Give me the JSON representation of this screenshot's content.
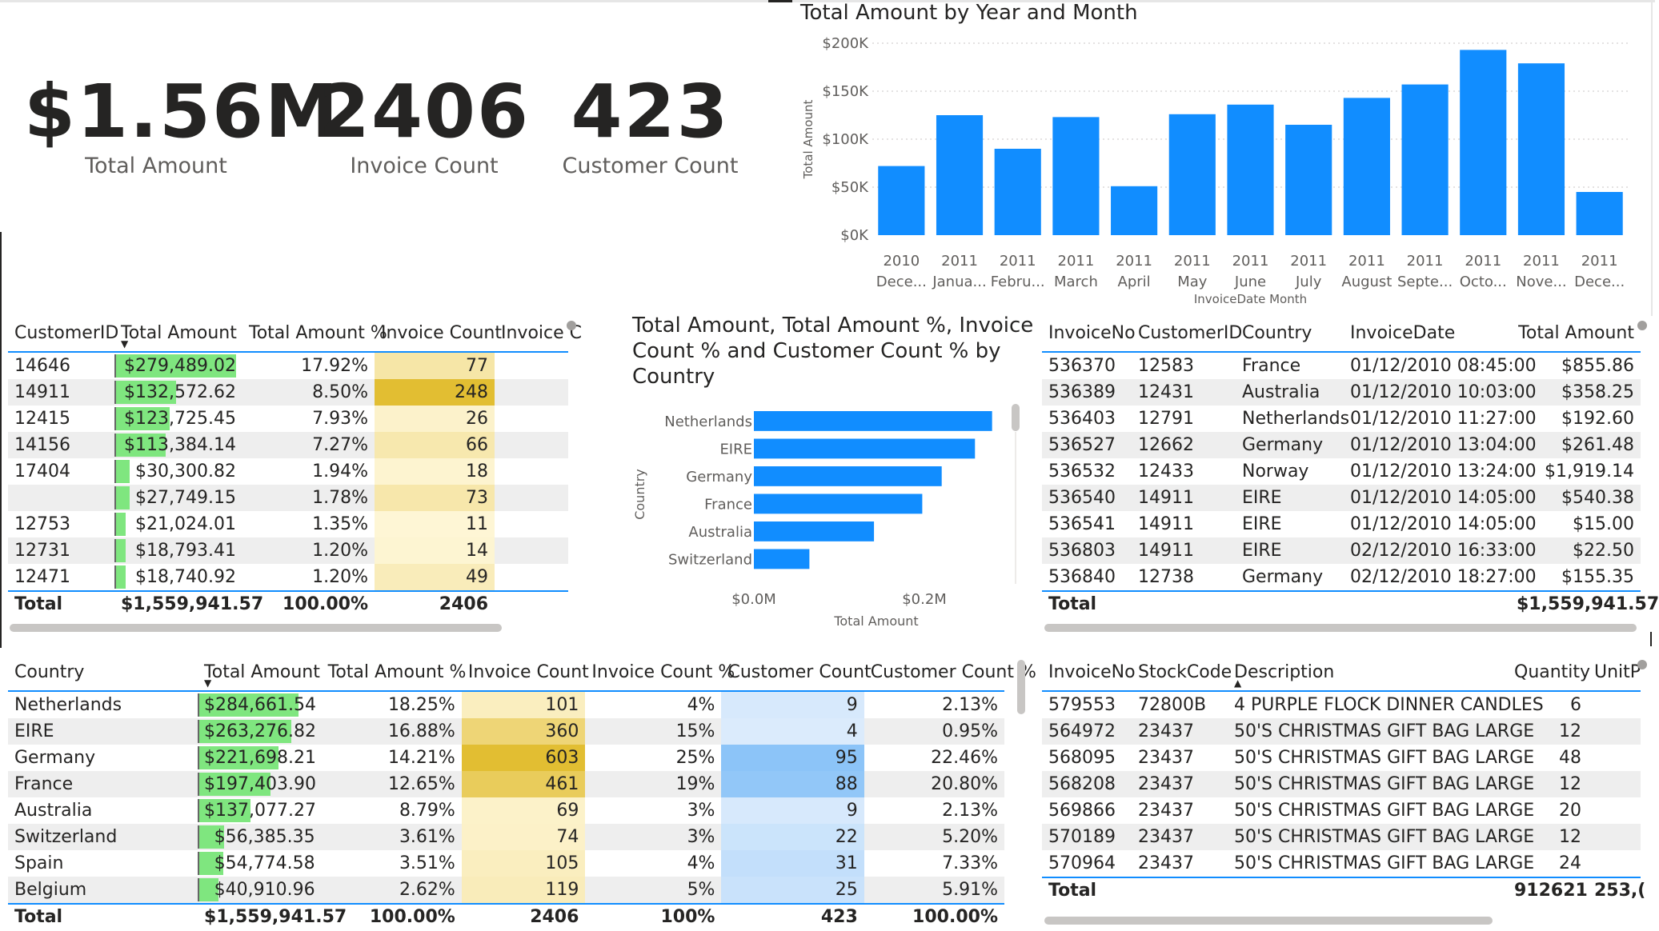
{
  "kpis": [
    {
      "value": "$1.56M",
      "label": "Total Amount"
    },
    {
      "value": "2406",
      "label": "Invoice Count"
    },
    {
      "value": "423",
      "label": "Customer Count"
    }
  ],
  "colors": {
    "accent": "#118dff",
    "databar": "#7fe67f",
    "gold": "#e2c032",
    "blue_bg": "#9dccf7"
  },
  "chart_data": [
    {
      "type": "bar",
      "title": "Total Amount by Year and Month",
      "xlabel": "InvoiceDate Month",
      "ylabel": "Total Amount",
      "ylim": [
        0,
        200000
      ],
      "yticks": [
        "$0K",
        "$50K",
        "$100K",
        "$150K",
        "$200K"
      ],
      "categories": [
        "2010 Dece...",
        "2011 Janua...",
        "2011 Febru...",
        "2011 March",
        "2011 April",
        "2011 May",
        "2011 June",
        "2011 July",
        "2011 August",
        "2011 Septe...",
        "2011 Octo...",
        "2011 Nove...",
        "2011 Dece..."
      ],
      "year_labels": [
        "2010",
        "2011",
        "2011",
        "2011",
        "2011",
        "2011",
        "2011",
        "2011",
        "2011",
        "2011",
        "2011",
        "2011",
        "2011"
      ],
      "month_labels": [
        "Dece...",
        "Janua...",
        "Febru...",
        "March",
        "April",
        "May",
        "June",
        "July",
        "August",
        "Septe...",
        "Octo...",
        "Nove...",
        "Dece..."
      ],
      "values": [
        72000,
        125000,
        90000,
        123000,
        51000,
        126000,
        136000,
        115000,
        143000,
        157000,
        193000,
        179000,
        45000
      ]
    },
    {
      "type": "bar",
      "orientation": "horizontal",
      "title": "Total Amount, Total Amount %, Invoice Count % and Customer Count % by Country",
      "title_lines": [
        "Total Amount, Total Amount %, Invoice",
        "Count % and Customer Count % by",
        "Country"
      ],
      "xlabel": "Total Amount",
      "ylabel": "Country",
      "xlim": [
        0,
        0.3
      ],
      "xticks": [
        "$0.0M",
        "$0.2M"
      ],
      "categories": [
        "Netherlands",
        "EIRE",
        "Germany",
        "France",
        "Australia",
        "Switzerland"
      ],
      "values": [
        284661.54,
        263276.82,
        221698.21,
        197403.9,
        137077.27,
        56385.35
      ]
    }
  ],
  "customer_table": {
    "headers": [
      "CustomerID",
      "Total Amount",
      "Total Amount %",
      "Invoice Count",
      "Invoice C"
    ],
    "rows": [
      {
        "id": "14646",
        "amount": "$279,489.02",
        "pct": "17.92%",
        "count": "77",
        "bar": 0.36,
        "heat": 0.31
      },
      {
        "id": "14911",
        "amount": "$132,572.62",
        "pct": "8.50%",
        "count": "248",
        "bar": 0.18,
        "heat": 1.0
      },
      {
        "id": "12415",
        "amount": "$123,725.45",
        "pct": "7.93%",
        "count": "26",
        "bar": 0.16,
        "heat": 0.1
      },
      {
        "id": "14156",
        "amount": "$113,384.14",
        "pct": "7.27%",
        "count": "66",
        "bar": 0.15,
        "heat": 0.27
      },
      {
        "id": "17404",
        "amount": "$30,300.82",
        "pct": "1.94%",
        "count": "18",
        "bar": 0.04,
        "heat": 0.07
      },
      {
        "id": "",
        "amount": "$27,749.15",
        "pct": "1.78%",
        "count": "73",
        "bar": 0.04,
        "heat": 0.29
      },
      {
        "id": "12753",
        "amount": "$21,024.01",
        "pct": "1.35%",
        "count": "11",
        "bar": 0.03,
        "heat": 0.04
      },
      {
        "id": "12731",
        "amount": "$18,793.41",
        "pct": "1.20%",
        "count": "14",
        "bar": 0.03,
        "heat": 0.06
      },
      {
        "id": "12471",
        "amount": "$18,740.92",
        "pct": "1.20%",
        "count": "49",
        "bar": 0.03,
        "heat": 0.2
      }
    ],
    "total": {
      "label": "Total",
      "amount": "$1,559,941.57",
      "pct": "100.00%",
      "count": "2406"
    }
  },
  "invoice_table": {
    "headers": [
      "InvoiceNo",
      "CustomerID",
      "Country",
      "InvoiceDate",
      "Total Amount"
    ],
    "rows": [
      {
        "no": "536370",
        "cust": "12583",
        "country": "France",
        "date": "01/12/2010 08:45:00",
        "amount": "$855.86"
      },
      {
        "no": "536389",
        "cust": "12431",
        "country": "Australia",
        "date": "01/12/2010 10:03:00",
        "amount": "$358.25"
      },
      {
        "no": "536403",
        "cust": "12791",
        "country": "Netherlands",
        "date": "01/12/2010 11:27:00",
        "amount": "$192.60"
      },
      {
        "no": "536527",
        "cust": "12662",
        "country": "Germany",
        "date": "01/12/2010 13:04:00",
        "amount": "$261.48"
      },
      {
        "no": "536532",
        "cust": "12433",
        "country": "Norway",
        "date": "01/12/2010 13:24:00",
        "amount": "$1,919.14"
      },
      {
        "no": "536540",
        "cust": "14911",
        "country": "EIRE",
        "date": "01/12/2010 14:05:00",
        "amount": "$540.38"
      },
      {
        "no": "536541",
        "cust": "14911",
        "country": "EIRE",
        "date": "01/12/2010 14:05:00",
        "amount": "$15.00"
      },
      {
        "no": "536803",
        "cust": "14911",
        "country": "EIRE",
        "date": "02/12/2010 16:33:00",
        "amount": "$22.50"
      },
      {
        "no": "536840",
        "cust": "12738",
        "country": "Germany",
        "date": "02/12/2010 18:27:00",
        "amount": "$155.35"
      }
    ],
    "total": {
      "label": "Total",
      "amount": "$1,559,941.57"
    }
  },
  "country_table": {
    "headers": [
      "Country",
      "Total Amount",
      "Total Amount %",
      "Invoice Count",
      "Invoice Count %",
      "Customer Count",
      "Customer Count %"
    ],
    "rows": [
      {
        "country": "Netherlands",
        "amount": "$284,661.54",
        "pct": "18.25%",
        "inv": "101",
        "invpct": "4%",
        "cust": "9",
        "custpct": "2.13%",
        "bar": 0.79,
        "heat": 0.17,
        "blue": 0.09
      },
      {
        "country": "EIRE",
        "amount": "$263,276.82",
        "pct": "16.88%",
        "inv": "360",
        "invpct": "15%",
        "cust": "4",
        "custpct": "0.95%",
        "bar": 0.73,
        "heat": 0.6,
        "blue": 0.04
      },
      {
        "country": "Germany",
        "amount": "$221,698.21",
        "pct": "14.21%",
        "inv": "603",
        "invpct": "25%",
        "cust": "95",
        "custpct": "22.46%",
        "bar": 0.62,
        "heat": 1.0,
        "blue": 1.0
      },
      {
        "country": "France",
        "amount": "$197,403.90",
        "pct": "12.65%",
        "inv": "461",
        "invpct": "19%",
        "cust": "88",
        "custpct": "20.80%",
        "bar": 0.55,
        "heat": 0.76,
        "blue": 0.93
      },
      {
        "country": "Australia",
        "amount": "$137,077.27",
        "pct": "8.79%",
        "inv": "69",
        "invpct": "3%",
        "cust": "9",
        "custpct": "2.13%",
        "bar": 0.38,
        "heat": 0.11,
        "blue": 0.09
      },
      {
        "country": "Switzerland",
        "amount": "$56,385.35",
        "pct": "3.61%",
        "inv": "74",
        "invpct": "3%",
        "cust": "22",
        "custpct": "5.20%",
        "bar": 0.16,
        "heat": 0.12,
        "blue": 0.23
      },
      {
        "country": "Spain",
        "amount": "$54,774.58",
        "pct": "3.51%",
        "inv": "105",
        "invpct": "4%",
        "cust": "31",
        "custpct": "7.33%",
        "bar": 0.15,
        "heat": 0.17,
        "blue": 0.33
      },
      {
        "country": "Belgium",
        "amount": "$40,910.96",
        "pct": "2.62%",
        "inv": "119",
        "invpct": "5%",
        "cust": "25",
        "custpct": "5.91%",
        "bar": 0.11,
        "heat": 0.2,
        "blue": 0.26
      }
    ],
    "total": {
      "label": "Total",
      "amount": "$1,559,941.57",
      "pct": "100.00%",
      "inv": "2406",
      "invpct": "100%",
      "cust": "423",
      "custpct": "100.00%"
    }
  },
  "product_table": {
    "headers": [
      "InvoiceNo",
      "StockCode",
      "Description",
      "Quantity",
      "UnitP"
    ],
    "rows": [
      {
        "no": "579553",
        "code": "72800B",
        "desc": "4 PURPLE FLOCK DINNER CANDLES",
        "qty": "6"
      },
      {
        "no": "564972",
        "code": "23437",
        "desc": "50'S CHRISTMAS GIFT BAG LARGE",
        "qty": "12"
      },
      {
        "no": "568095",
        "code": "23437",
        "desc": "50'S CHRISTMAS GIFT BAG LARGE",
        "qty": "48"
      },
      {
        "no": "568208",
        "code": "23437",
        "desc": "50'S CHRISTMAS GIFT BAG LARGE",
        "qty": "12"
      },
      {
        "no": "569866",
        "code": "23437",
        "desc": "50'S CHRISTMAS GIFT BAG LARGE",
        "qty": "20"
      },
      {
        "no": "570189",
        "code": "23437",
        "desc": "50'S CHRISTMAS GIFT BAG LARGE",
        "qty": "12"
      },
      {
        "no": "570964",
        "code": "23437",
        "desc": "50'S CHRISTMAS GIFT BAG LARGE",
        "qty": "24"
      }
    ],
    "total": {
      "label": "Total",
      "qty": "912621",
      "unit": "253,("
    }
  }
}
